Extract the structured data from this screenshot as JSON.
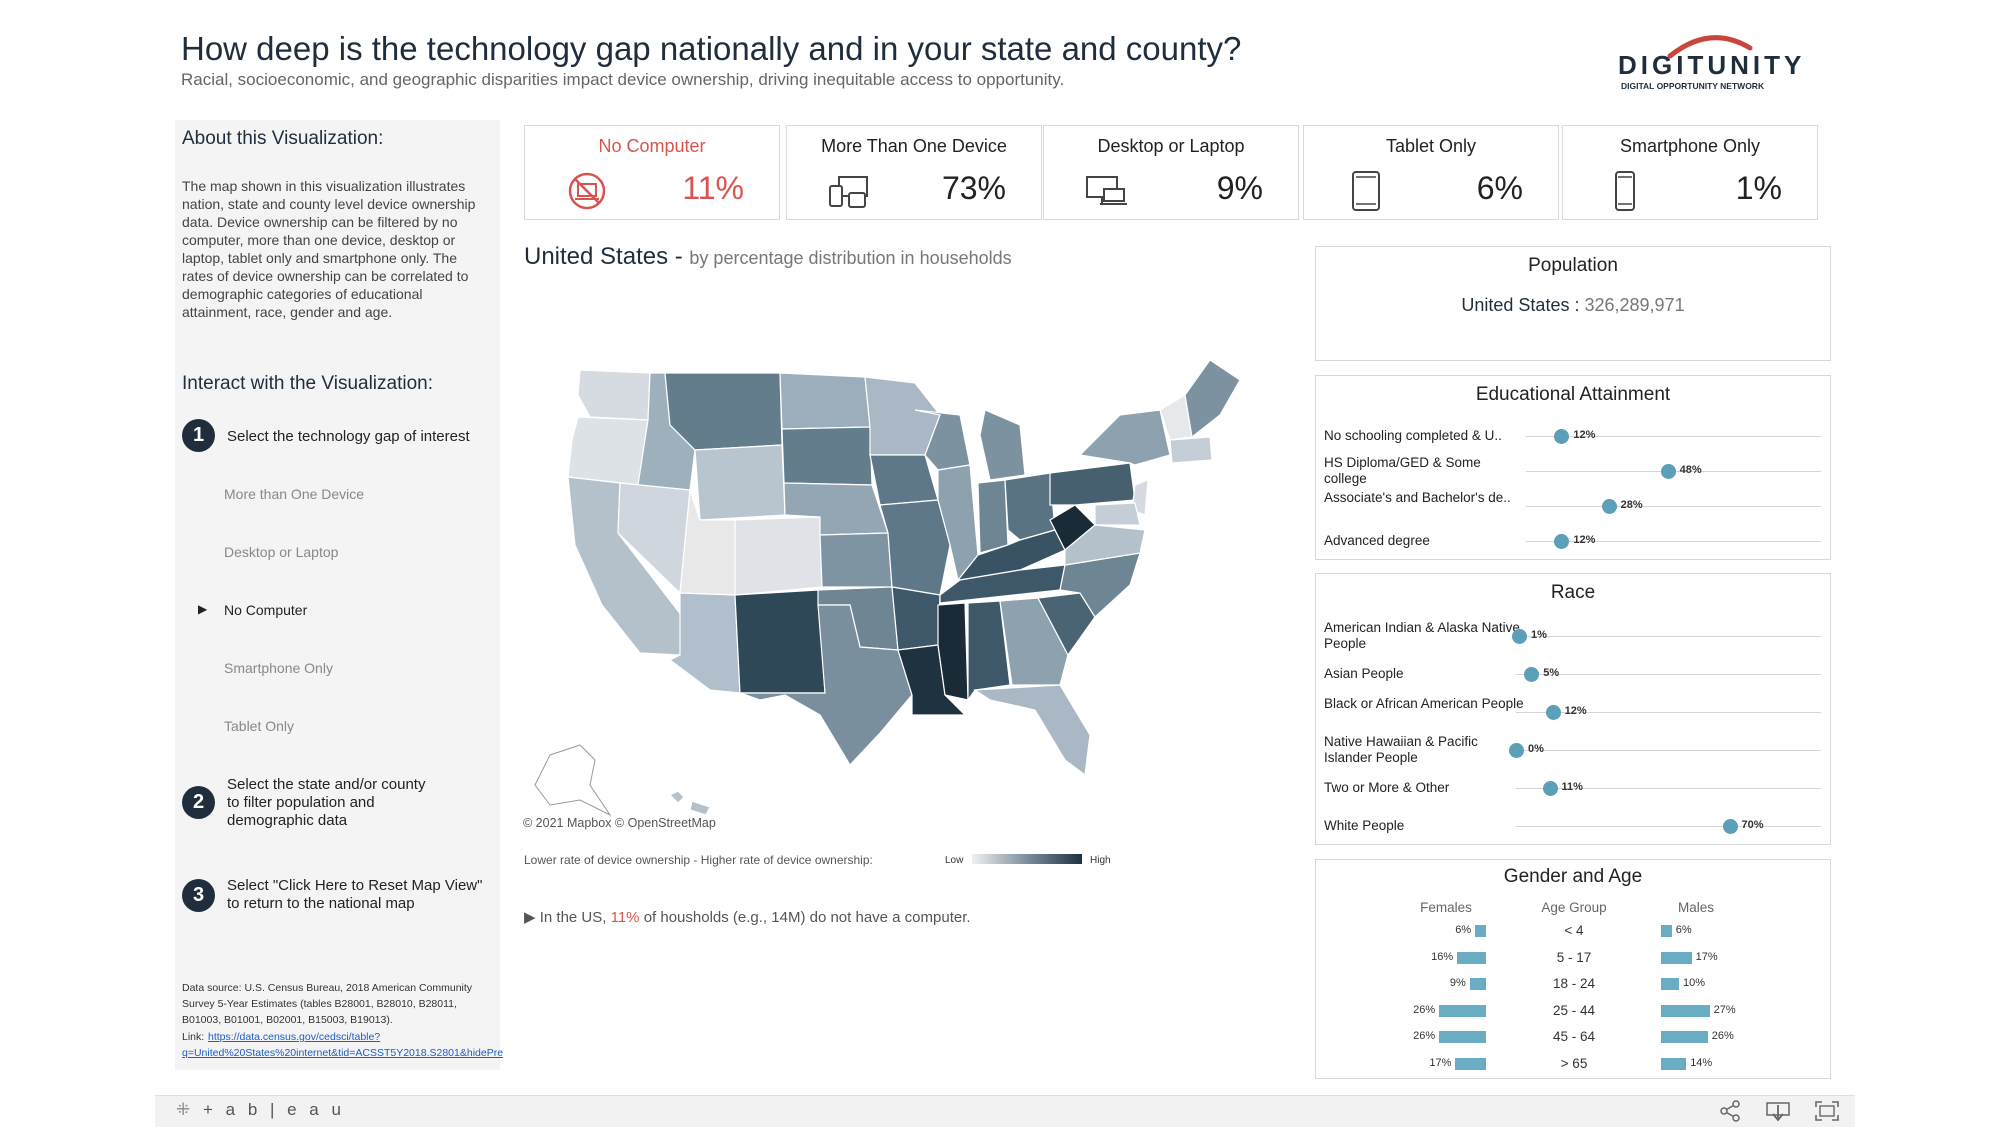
{
  "header": {
    "title": "How deep is the technology gap nationally and in your state and county?",
    "subtitle": "Racial, socioeconomic, and geographic disparities impact device ownership, driving inequitable access to opportunity.",
    "logo_text": "DIGITUNITY",
    "logo_tagline": "DIGITAL OPPORTUNITY NETWORK"
  },
  "left_panel": {
    "about_heading": "About this Visualization:",
    "about_text": "The map shown in this visualization illustrates nation, state and county level device ownership data. Device ownership can be filtered by no computer, more than one device, desktop or laptop, tablet only and smartphone only.  The rates of device ownership can be correlated to demographic categories of educational attainment, race, gender and age.",
    "interact_heading": "Interact with the Visualization:",
    "steps": [
      {
        "num": "1",
        "text": "Select the technology gap of interest"
      },
      {
        "num": "2",
        "text": "Select the state and/or county to filter population and demographic data"
      },
      {
        "num": "3",
        "text": "Select \"Click Here to Reset Map View\" to return to the national map"
      }
    ],
    "filters": [
      {
        "label": "More than One Device",
        "selected": false
      },
      {
        "label": "Desktop or Laptop",
        "selected": false
      },
      {
        "label": "No Computer",
        "selected": true
      },
      {
        "label": "Smartphone Only",
        "selected": false
      },
      {
        "label": "Tablet Only",
        "selected": false
      }
    ],
    "selected_marker": "▶",
    "source_text": "Data source: U.S. Census Bureau, 2018 American Community Survey 5-Year Estimates (tables B28001, B28010, B28011, B01003, B01001, B02001, B15003, B19013).",
    "source_link_prefix": "Link:",
    "source_link_1": "https://data.census.gov/cedsci/table?",
    "source_link_2": "q=United%20States%20internet&tid=ACSST5Y2018.S2801&hidePre"
  },
  "kpis": [
    {
      "label": "No Computer",
      "value": "11%",
      "icon": "no-computer-icon",
      "alert": true
    },
    {
      "label": "More Than One Device",
      "value": "73%",
      "icon": "multi-device-icon",
      "alert": false
    },
    {
      "label": "Desktop or Laptop",
      "value": "9%",
      "icon": "desktop-laptop-icon",
      "alert": false
    },
    {
      "label": "Tablet Only",
      "value": "6%",
      "icon": "tablet-icon",
      "alert": false
    },
    {
      "label": "Smartphone Only",
      "value": "1%",
      "icon": "smartphone-icon",
      "alert": false
    }
  ],
  "map": {
    "title": "United States",
    "separator": " - ",
    "subtitle": "by percentage distribution in households",
    "credit": "© 2021 Mapbox © OpenStreetMap",
    "legend_caption": "Lower rate of device ownership - Higher rate of device ownership:",
    "legend_low": "Low",
    "legend_high": "High",
    "note_prefix": "In the US,",
    "note_value": "11%",
    "note_suffix": "of housholds (e.g., 14M) do not have a computer.",
    "note_marker": "▶"
  },
  "population": {
    "title": "Population",
    "label": "United States :",
    "value": "326,289,971"
  },
  "education": {
    "title": "Educational Attainment",
    "rows": [
      {
        "label": "No schooling completed & U..",
        "value": 12,
        "display": "12%"
      },
      {
        "label": "HS Diploma/GED & Some college",
        "value": 48,
        "display": "48%"
      },
      {
        "label": "Associate's and Bachelor's de..",
        "value": 28,
        "display": "28%"
      },
      {
        "label": "Advanced degree",
        "value": 12,
        "display": "12%"
      }
    ]
  },
  "race": {
    "title": "Race",
    "rows": [
      {
        "label": "American Indian & Alaska Native People",
        "value": 1,
        "display": "1%"
      },
      {
        "label": "Asian People",
        "value": 5,
        "display": "5%"
      },
      {
        "label": "Black or African American People",
        "value": 12,
        "display": "12%"
      },
      {
        "label": "Native Hawaiian & Pacific Islander People",
        "value": 0,
        "display": "0%"
      },
      {
        "label": "Two or More & Other",
        "value": 11,
        "display": "11%"
      },
      {
        "label": "White People",
        "value": 70,
        "display": "70%"
      }
    ]
  },
  "gender_age": {
    "title": "Gender and Age",
    "females_label": "Females",
    "age_label": "Age Group",
    "males_label": "Males",
    "rows": [
      {
        "age": "< 4",
        "female": 6,
        "female_display": "6%",
        "male": 6,
        "male_display": "6%"
      },
      {
        "age": "5 - 17",
        "female": 16,
        "female_display": "16%",
        "male": 17,
        "male_display": "17%"
      },
      {
        "age": "18 - 24",
        "female": 9,
        "female_display": "9%",
        "male": 10,
        "male_display": "10%"
      },
      {
        "age": "25 - 44",
        "female": 26,
        "female_display": "26%",
        "male": 27,
        "male_display": "27%"
      },
      {
        "age": "45 - 64",
        "female": 26,
        "female_display": "26%",
        "male": 26,
        "male_display": "26%"
      },
      {
        "age": "> 65",
        "female": 17,
        "female_display": "17%",
        "male": 14,
        "male_display": "14%"
      }
    ]
  },
  "footer": {
    "brand": "+ a b | e a u"
  },
  "colors": {
    "accent_red": "#d9534f",
    "navy": "#1f2d3d",
    "dot_blue": "#5b9fb8",
    "bar_blue": "#6aadc3"
  }
}
